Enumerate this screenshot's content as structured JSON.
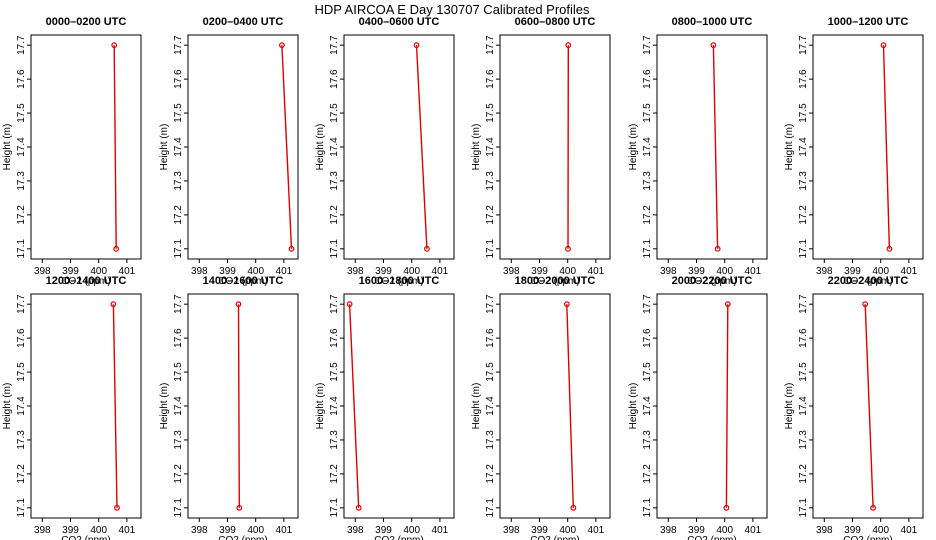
{
  "title": "HDP AIRCOA E  Day 130707  Calibrated Profiles",
  "chart_data": {
    "type": "line",
    "title": "HDP AIRCOA E  Day 130707  Calibrated Profiles",
    "xlabel": "CO2 (ppm)",
    "ylabel": "Height (m)",
    "xlim": [
      397.6,
      401.5
    ],
    "ylim": [
      17.07,
      17.73
    ],
    "xticks": [
      398,
      399,
      400,
      401
    ],
    "yticks": [
      17.1,
      17.2,
      17.3,
      17.4,
      17.5,
      17.6,
      17.7
    ],
    "grid": false,
    "line_color": "#dd0000",
    "marker_color": "#dd0000",
    "panels": [
      {
        "title": "0000–0200 UTC",
        "points": [
          {
            "co2": 400.55,
            "height": 17.7
          },
          {
            "co2": 400.62,
            "height": 17.1
          }
        ]
      },
      {
        "title": "0200–0400 UTC",
        "points": [
          {
            "co2": 400.93,
            "height": 17.7
          },
          {
            "co2": 401.27,
            "height": 17.1
          }
        ]
      },
      {
        "title": "0400–0600 UTC",
        "points": [
          {
            "co2": 400.17,
            "height": 17.7
          },
          {
            "co2": 400.54,
            "height": 17.1
          }
        ]
      },
      {
        "title": "0600–0800 UTC",
        "points": [
          {
            "co2": 400.02,
            "height": 17.7
          },
          {
            "co2": 400.01,
            "height": 17.1
          }
        ]
      },
      {
        "title": "0800–1000 UTC",
        "points": [
          {
            "co2": 399.6,
            "height": 17.7
          },
          {
            "co2": 399.75,
            "height": 17.1
          }
        ]
      },
      {
        "title": "1000–1200 UTC",
        "points": [
          {
            "co2": 400.1,
            "height": 17.7
          },
          {
            "co2": 400.31,
            "height": 17.1
          }
        ]
      },
      {
        "title": "1200–1400 UTC",
        "points": [
          {
            "co2": 400.52,
            "height": 17.7
          },
          {
            "co2": 400.65,
            "height": 17.1
          }
        ]
      },
      {
        "title": "1400–1600 UTC",
        "points": [
          {
            "co2": 399.39,
            "height": 17.7
          },
          {
            "co2": 399.42,
            "height": 17.1
          }
        ]
      },
      {
        "title": "1600–1800 UTC",
        "points": [
          {
            "co2": 397.8,
            "height": 17.7
          },
          {
            "co2": 398.12,
            "height": 17.1
          }
        ]
      },
      {
        "title": "1800–2000 UTC",
        "points": [
          {
            "co2": 399.97,
            "height": 17.7
          },
          {
            "co2": 400.2,
            "height": 17.1
          }
        ]
      },
      {
        "title": "2000–2200 UTC",
        "points": [
          {
            "co2": 400.11,
            "height": 17.7
          },
          {
            "co2": 400.06,
            "height": 17.1
          }
        ]
      },
      {
        "title": "2200–2400 UTC",
        "points": [
          {
            "co2": 399.45,
            "height": 17.7
          },
          {
            "co2": 399.73,
            "height": 17.1
          }
        ]
      }
    ]
  }
}
